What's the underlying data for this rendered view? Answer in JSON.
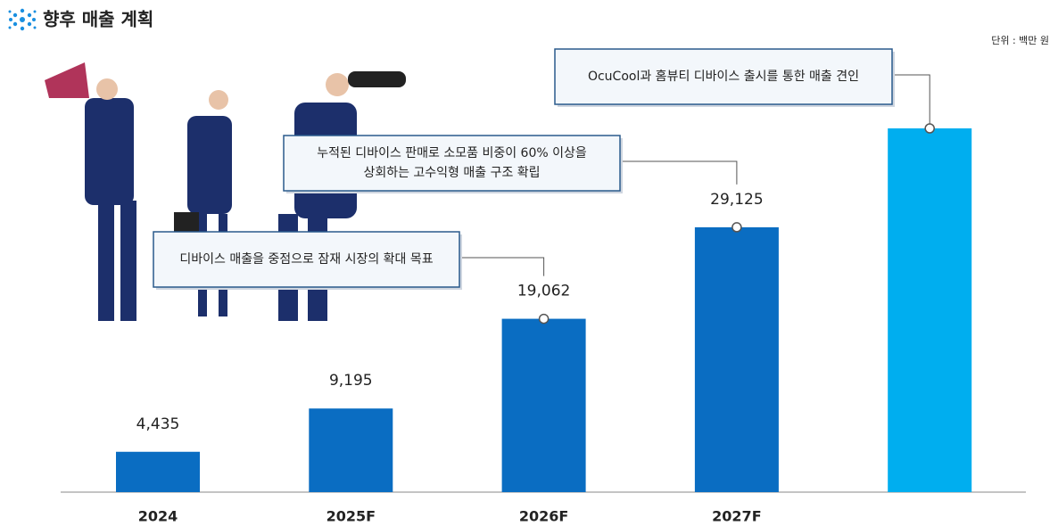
{
  "chart_data": {
    "type": "bar",
    "title": "향후 매출 계획",
    "unit_note": "단위 : 백만 원",
    "categories": [
      "2024",
      "2025F",
      "2026F",
      "2027F",
      null
    ],
    "values": [
      4435,
      9195,
      19062,
      29125,
      40000
    ],
    "value_labels": [
      "4,435",
      "9,195",
      "19,062",
      "29,125",
      null
    ],
    "colors": [
      "#0a6dc2",
      "#0a6dc2",
      "#0a6dc2",
      "#0a6dc2",
      "#00aeef"
    ],
    "ylim": [
      0,
      40000
    ],
    "annotations": [
      [
        "디바이스 매출을 중점으로 잠재 시장의 확대 목표"
      ],
      [
        "누적된 디바이스 판매로 소모품 비중이 60% 이상을",
        "상회하는 고수익형 매출 구조 확립"
      ],
      [
        "OcuCool과 홈뷰티 디바이스 출시를 통한 매출 견인"
      ]
    ]
  }
}
